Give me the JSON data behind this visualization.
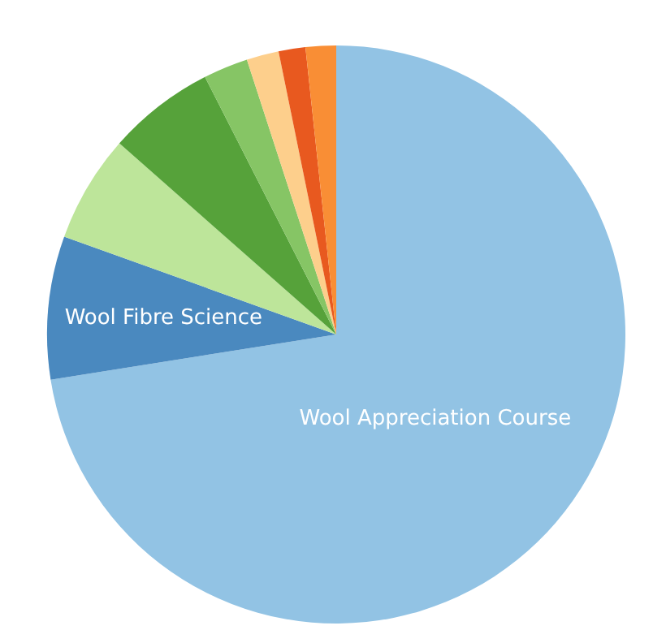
{
  "chart_data": {
    "type": "pie",
    "categories": [
      "Wool Appreciation Course",
      "Wool Fibre Science",
      null,
      null,
      null,
      null,
      null,
      null
    ],
    "values": [
      72.5,
      8,
      6,
      6,
      2.5,
      1.8,
      1.5,
      1.7
    ],
    "colors": [
      "#92c3e4",
      "#4a89bf",
      "#bde59a",
      "#56a23a",
      "#86c565",
      "#fdcf8c",
      "#e8591f",
      "#f98e35"
    ],
    "legend": false
  }
}
